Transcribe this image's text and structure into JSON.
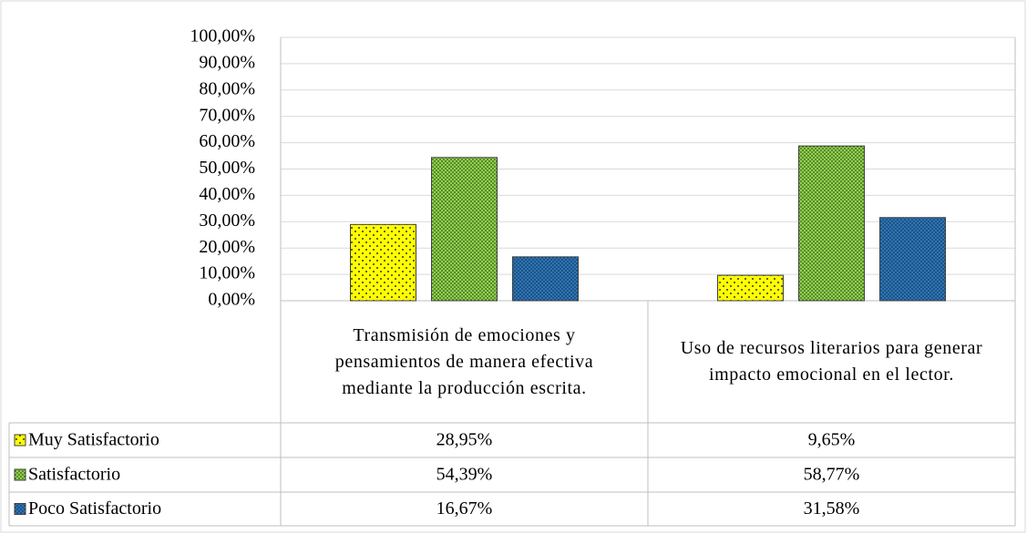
{
  "chart_data": {
    "type": "bar",
    "categories": [
      "Transmisión de emociones y pensamientos de manera efectiva mediante la producción escrita.",
      "Uso de recursos literarios para generar impacto emocional en el lector."
    ],
    "series": [
      {
        "name": "Muy Satisfactorio",
        "color": "#ffff00",
        "values": [
          28.95,
          9.65
        ],
        "value_labels": [
          "28,95%",
          "9,65%"
        ]
      },
      {
        "name": "Satisfactorio",
        "color": "#92d050",
        "values": [
          54.39,
          58.77
        ],
        "value_labels": [
          "54,39%",
          "58,77%"
        ]
      },
      {
        "name": "Poco Satisfactorio",
        "color": "#2e75b6",
        "values": [
          16.67,
          31.58
        ],
        "value_labels": [
          "16,67%",
          "31,58%"
        ]
      }
    ],
    "ylim": [
      0,
      100
    ],
    "yticks": [
      {
        "value": 0,
        "label": "0,00%"
      },
      {
        "value": 10,
        "label": "10,00%"
      },
      {
        "value": 20,
        "label": "20,00%"
      },
      {
        "value": 30,
        "label": "30,00%"
      },
      {
        "value": 40,
        "label": "40,00%"
      },
      {
        "value": 50,
        "label": "50,00%"
      },
      {
        "value": 60,
        "label": "60,00%"
      },
      {
        "value": 70,
        "label": "70,00%"
      },
      {
        "value": 80,
        "label": "80,00%"
      },
      {
        "value": 90,
        "label": "90,00%"
      },
      {
        "value": 100,
        "label": "100,00%"
      }
    ],
    "grid": true
  }
}
